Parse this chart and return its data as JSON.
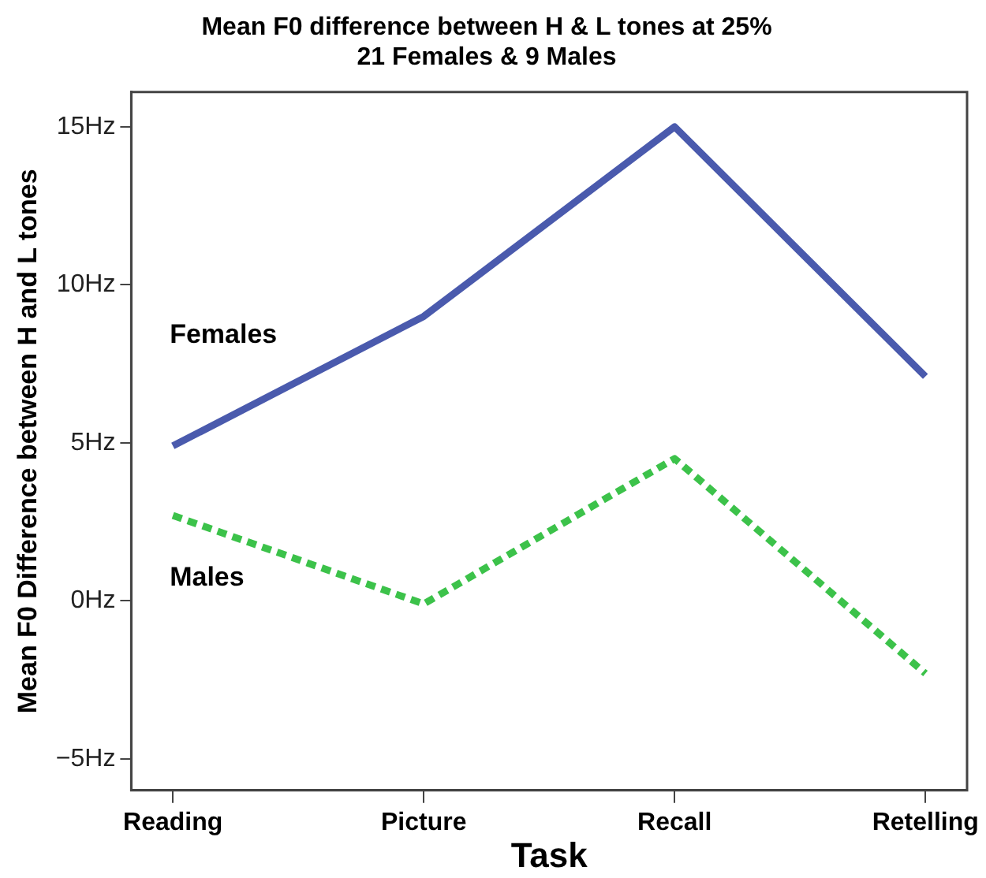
{
  "chart_data": {
    "type": "line",
    "title": "Mean F0 difference between H & L tones at 25%",
    "subtitle": "21 Females & 9 Males",
    "xlabel": "Task",
    "ylabel": "Mean F0 Difference between H and L tones",
    "categories": [
      "Reading",
      "Picture",
      "Recall",
      "Retelling"
    ],
    "series": [
      {
        "name": "Females",
        "color": "#4a5aad",
        "values": [
          4.9,
          9.0,
          15.0,
          7.1
        ],
        "line_style": "solid"
      },
      {
        "name": "Males",
        "color": "#3cc24a",
        "values": [
          2.7,
          -0.1,
          4.5,
          -2.3
        ],
        "line_style": "dotted"
      }
    ],
    "ylim": [
      -6,
      16.1
    ],
    "yticks": [
      {
        "value": -5,
        "label": "−5Hz"
      },
      {
        "value": 0,
        "label": "0Hz"
      },
      {
        "value": 5,
        "label": "5Hz"
      },
      {
        "value": 10,
        "label": "10Hz"
      },
      {
        "value": 15,
        "label": "15Hz"
      }
    ],
    "grid": false,
    "legend": false,
    "marker": "none"
  }
}
